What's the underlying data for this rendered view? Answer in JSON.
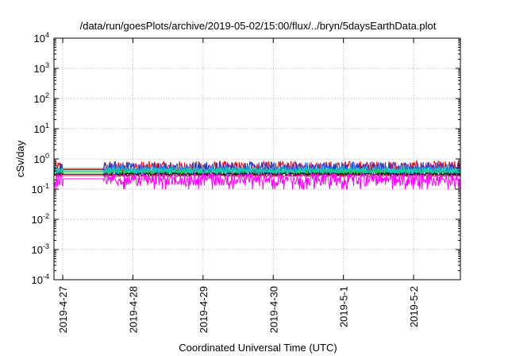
{
  "chart_data": {
    "type": "line",
    "title": "/data/run/goesPlots/archive/2019-05-02/15:00/flux/../bryn/5daysEarthData.plot",
    "xlabel": "Coordinated Universal Time (UTC)",
    "ylabel": "cSv/day",
    "y_scale": "log",
    "ylim": [
      0.0001,
      10000
    ],
    "y_ticks": [
      {
        "base": "10",
        "exp": "-4"
      },
      {
        "base": "10",
        "exp": "-3"
      },
      {
        "base": "10",
        "exp": "-2"
      },
      {
        "base": "10",
        "exp": "-1"
      },
      {
        "base": "10",
        "exp": "0"
      },
      {
        "base": "10",
        "exp": "1"
      },
      {
        "base": "10",
        "exp": "2"
      },
      {
        "base": "10",
        "exp": "3"
      },
      {
        "base": "10",
        "exp": "4"
      }
    ],
    "xlim": [
      "2019-04-26 21:00",
      "2019-05-02 16:00"
    ],
    "x_ticks": [
      "2019-4-27",
      "2019-4-28",
      "2019-4-29",
      "2019-4-30",
      "2019-5-1",
      "2019-5-2"
    ],
    "grid": true,
    "data_gap": [
      "2019-04-27 00:00",
      "2019-04-27 14:00"
    ],
    "series": [
      {
        "color": "#e0101a",
        "x_start": "2019-04-26 21:00",
        "x_end": "2019-05-02 16:00",
        "level": 0.48,
        "spread": 1.7
      },
      {
        "color": "#1f3fd0",
        "x_start": "2019-04-26 21:00",
        "x_end": "2019-05-02 16:00",
        "level": 0.44,
        "spread": 1.75
      },
      {
        "color": "#1fa0e8",
        "x_start": "2019-04-26 21:00",
        "x_end": "2019-05-02 16:00",
        "level": 0.4,
        "spread": 1.45
      },
      {
        "color": "#20c030",
        "x_start": "2019-04-26 21:00",
        "x_end": "2019-05-02 16:00",
        "level": 0.36,
        "spread": 1.3
      },
      {
        "color": "#10d0c0",
        "x_start": "2019-04-26 21:00",
        "x_end": "2019-05-02 16:00",
        "level": 0.4,
        "spread": 1.25
      },
      {
        "color": "#000000",
        "x_start": "2019-04-26 21:00",
        "x_end": "2019-05-02 16:00",
        "level": 0.31,
        "spread": 1.1
      },
      {
        "color": "#c01040",
        "x_start": "2019-04-26 21:00",
        "x_end": "2019-05-02 16:00",
        "level": 0.28,
        "spread": 1.08
      },
      {
        "color": "#ff00ff",
        "x_start": "2019-04-26 21:00",
        "x_end": "2019-05-02 16:00",
        "level": 0.22,
        "spread": 0.6
      }
    ]
  }
}
